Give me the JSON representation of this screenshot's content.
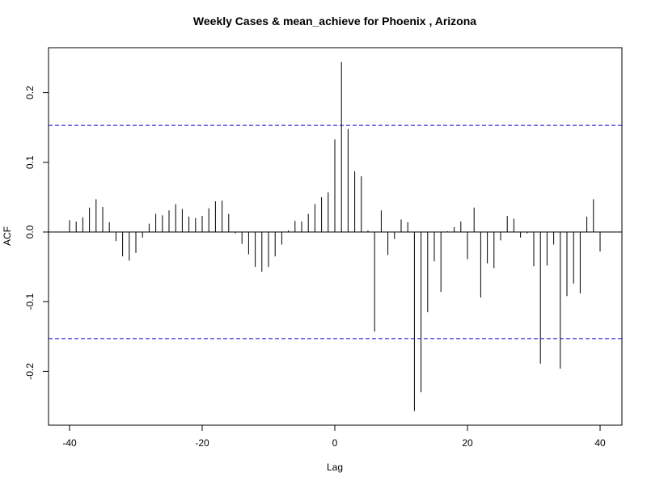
{
  "chart_data": {
    "type": "bar",
    "title": "Weekly Cases & mean_achieve for Phoenix , Arizona",
    "xlabel": "Lag",
    "ylabel": "ACF",
    "xlim": [
      -40,
      40
    ],
    "ylim": [
      -0.26,
      0.25
    ],
    "xticks": [
      -40,
      -20,
      0,
      20,
      40
    ],
    "yticks": [
      -0.2,
      -0.1,
      0.0,
      0.1,
      0.2
    ],
    "xtick_labels": [
      "-40",
      "-20",
      "0",
      "20",
      "40"
    ],
    "ytick_labels": [
      "-0.2",
      "-0.1",
      "0.0",
      "0.1",
      "0.2"
    ],
    "confidence_bounds": [
      0.153,
      -0.153
    ],
    "bound_color": "#0000cc",
    "line_color": "#000000",
    "grid": false,
    "x": [
      -40,
      -39,
      -38,
      -37,
      -36,
      -35,
      -34,
      -33,
      -32,
      -31,
      -30,
      -29,
      -28,
      -27,
      -26,
      -25,
      -24,
      -23,
      -22,
      -21,
      -20,
      -19,
      -18,
      -17,
      -16,
      -15,
      -14,
      -13,
      -12,
      -11,
      -10,
      -9,
      -8,
      -7,
      -6,
      -5,
      -4,
      -3,
      -2,
      -1,
      0,
      1,
      2,
      3,
      4,
      5,
      6,
      7,
      8,
      9,
      10,
      11,
      12,
      13,
      14,
      15,
      16,
      17,
      18,
      19,
      20,
      21,
      22,
      23,
      24,
      25,
      26,
      27,
      28,
      29,
      30,
      31,
      32,
      33,
      34,
      35,
      36,
      37,
      38,
      39,
      40
    ],
    "values": [
      0.017,
      0.015,
      0.021,
      0.035,
      0.047,
      0.036,
      0.014,
      -0.013,
      -0.035,
      -0.041,
      -0.03,
      -0.008,
      0.012,
      0.026,
      0.024,
      0.031,
      0.04,
      0.033,
      0.022,
      0.02,
      0.023,
      0.034,
      0.044,
      0.045,
      0.026,
      -0.002,
      -0.017,
      -0.032,
      -0.05,
      -0.057,
      -0.05,
      -0.035,
      -0.018,
      0.002,
      0.016,
      0.015,
      0.026,
      0.04,
      0.05,
      0.057,
      0.133,
      0.244,
      0.148,
      0.087,
      0.08,
      0.002,
      -0.143,
      0.031,
      -0.033,
      -0.01,
      0.018,
      0.014,
      -0.257,
      -0.23,
      -0.115,
      -0.042,
      -0.086,
      0.001,
      0.007,
      0.015,
      -0.039,
      0.035,
      -0.094,
      -0.045,
      -0.052,
      -0.012,
      0.023,
      0.019,
      -0.008,
      -0.002,
      -0.049,
      -0.189,
      -0.048,
      -0.018,
      -0.196,
      -0.092,
      -0.074,
      -0.088,
      0.022,
      0.047,
      -0.028
    ]
  }
}
